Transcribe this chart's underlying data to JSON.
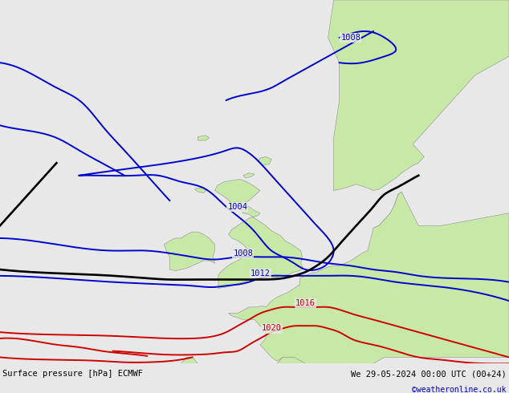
{
  "title_left": "Surface pressure [hPa] ECMWF",
  "title_right": "We 29-05-2024 00:00 UTC (00+24)",
  "credit": "©weatheronline.co.uk",
  "bg_color": "#e8e8e8",
  "sea_color": "#e8e8e8",
  "land_color": "#c8e8a8",
  "border_color": "#909090",
  "lon_min": -25.0,
  "lon_max": 20.0,
  "lat_min": 44.0,
  "lat_max": 73.0,
  "figwidth": 6.34,
  "figheight": 4.9,
  "dpi": 100,
  "bottom_bar_height": 0.075
}
